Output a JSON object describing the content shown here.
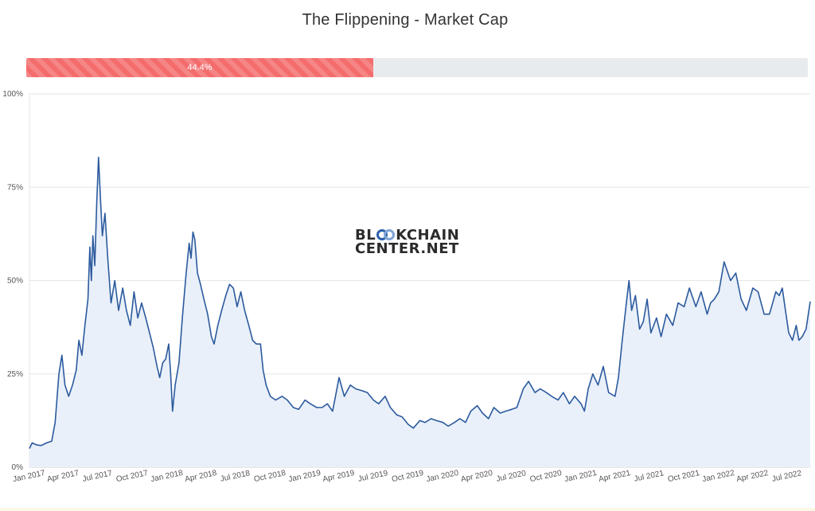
{
  "header": {
    "title": "The Flippening - Market Cap"
  },
  "progress": {
    "value_percent": 44.4,
    "label": "44.4%",
    "fill_color": "#f46c6c",
    "track_color": "#e8ebee"
  },
  "watermark": {
    "line1_pre": "BL",
    "line1_post": "KCHAIN",
    "line2": "CENTER.NET",
    "icon": "double-ring-o-icon"
  },
  "chart_data": {
    "type": "area",
    "title": "The Flippening - Market Cap",
    "xlabel": "",
    "ylabel": "",
    "ylim": [
      0,
      100
    ],
    "y_ticks": [
      "0%",
      "25%",
      "50%",
      "75%",
      "100%"
    ],
    "y_tick_values": [
      0,
      25,
      50,
      75,
      100
    ],
    "x_range": [
      "2017-01-01",
      "2022-08-31"
    ],
    "x_tick_labels": [
      "Jan 2017",
      "Apr 2017",
      "Jul 2017",
      "Oct 2017",
      "Jan 2018",
      "Apr 2018",
      "Jul 2018",
      "Oct 2018",
      "Jan 2019",
      "Apr 2019",
      "Jul 2019",
      "Oct 2019",
      "Jan 2020",
      "Apr 2020",
      "Jul 2020",
      "Oct 2020",
      "Jan 2021",
      "Apr 2021",
      "Jul 2021",
      "Oct 2021",
      "Jan 2022",
      "Apr 2022",
      "Jul 2022"
    ],
    "x_tick_dates": [
      "2017-01-01",
      "2017-04-01",
      "2017-07-01",
      "2017-10-01",
      "2018-01-01",
      "2018-04-01",
      "2018-07-01",
      "2018-10-01",
      "2019-01-01",
      "2019-04-01",
      "2019-07-01",
      "2019-10-01",
      "2020-01-01",
      "2020-04-01",
      "2020-07-01",
      "2020-10-01",
      "2021-01-01",
      "2021-04-01",
      "2021-07-01",
      "2021-10-01",
      "2022-01-01",
      "2022-04-01",
      "2022-07-01"
    ],
    "line_color": "#2c5a9e",
    "fill_color": "#e9f0f9",
    "grid": true,
    "legend": "none",
    "series": [
      {
        "x": [
          "2017-01-01",
          "2017-01-08",
          "2017-01-20",
          "2017-02-01",
          "2017-02-15",
          "2017-03-01",
          "2017-03-10",
          "2017-03-20",
          "2017-03-28",
          "2017-04-05",
          "2017-04-15",
          "2017-04-25",
          "2017-05-05",
          "2017-05-12",
          "2017-05-20",
          "2017-05-28",
          "2017-06-05",
          "2017-06-10",
          "2017-06-14",
          "2017-06-18",
          "2017-06-23",
          "2017-06-28",
          "2017-07-03",
          "2017-07-08",
          "2017-07-13",
          "2017-07-20",
          "2017-07-28",
          "2017-08-05",
          "2017-08-15",
          "2017-08-25",
          "2017-09-05",
          "2017-09-15",
          "2017-09-25",
          "2017-10-05",
          "2017-10-15",
          "2017-10-25",
          "2017-11-05",
          "2017-11-15",
          "2017-11-25",
          "2017-12-05",
          "2017-12-12",
          "2017-12-20",
          "2017-12-28",
          "2018-01-05",
          "2018-01-10",
          "2018-01-15",
          "2018-01-22",
          "2018-02-01",
          "2018-02-10",
          "2018-02-20",
          "2018-02-28",
          "2018-03-05",
          "2018-03-10",
          "2018-03-15",
          "2018-03-22",
          "2018-03-30",
          "2018-04-08",
          "2018-04-18",
          "2018-04-28",
          "2018-05-05",
          "2018-05-15",
          "2018-05-25",
          "2018-06-05",
          "2018-06-15",
          "2018-06-25",
          "2018-07-05",
          "2018-07-15",
          "2018-07-25",
          "2018-08-05",
          "2018-08-15",
          "2018-08-25",
          "2018-09-05",
          "2018-09-12",
          "2018-09-20",
          "2018-10-01",
          "2018-10-15",
          "2018-11-01",
          "2018-11-15",
          "2018-12-01",
          "2018-12-15",
          "2019-01-01",
          "2019-01-15",
          "2019-02-01",
          "2019-02-15",
          "2019-03-01",
          "2019-03-15",
          "2019-04-01",
          "2019-04-15",
          "2019-05-01",
          "2019-05-15",
          "2019-06-01",
          "2019-06-15",
          "2019-07-01",
          "2019-07-15",
          "2019-08-01",
          "2019-08-15",
          "2019-09-01",
          "2019-09-15",
          "2019-10-01",
          "2019-10-15",
          "2019-11-01",
          "2019-11-15",
          "2019-12-01",
          "2019-12-15",
          "2020-01-01",
          "2020-01-15",
          "2020-02-01",
          "2020-02-15",
          "2020-03-01",
          "2020-03-15",
          "2020-04-01",
          "2020-04-15",
          "2020-05-01",
          "2020-05-15",
          "2020-06-01",
          "2020-06-15",
          "2020-07-01",
          "2020-07-15",
          "2020-08-01",
          "2020-08-15",
          "2020-09-01",
          "2020-09-15",
          "2020-10-01",
          "2020-10-15",
          "2020-11-01",
          "2020-11-15",
          "2020-12-01",
          "2020-12-15",
          "2021-01-01",
          "2021-01-10",
          "2021-01-20",
          "2021-02-01",
          "2021-02-15",
          "2021-03-01",
          "2021-03-15",
          "2021-04-01",
          "2021-04-10",
          "2021-04-20",
          "2021-05-01",
          "2021-05-08",
          "2021-05-15",
          "2021-05-25",
          "2021-06-05",
          "2021-06-15",
          "2021-06-25",
          "2021-07-05",
          "2021-07-20",
          "2021-08-01",
          "2021-08-15",
          "2021-09-01",
          "2021-09-15",
          "2021-10-01",
          "2021-10-15",
          "2021-11-01",
          "2021-11-15",
          "2021-12-01",
          "2021-12-10",
          "2021-12-20",
          "2022-01-01",
          "2022-01-15",
          "2022-02-01",
          "2022-02-15",
          "2022-03-01",
          "2022-03-15",
          "2022-04-01",
          "2022-04-15",
          "2022-05-01",
          "2022-05-15",
          "2022-06-01",
          "2022-06-10",
          "2022-06-18",
          "2022-06-25",
          "2022-07-05",
          "2022-07-15",
          "2022-07-25",
          "2022-08-01",
          "2022-08-10",
          "2022-08-20",
          "2022-08-31"
        ],
        "y": [
          5,
          6.5,
          6,
          5.8,
          6.5,
          7,
          12,
          25,
          30,
          22,
          19,
          22,
          26,
          34,
          30,
          38,
          45,
          59,
          50,
          62,
          54,
          70,
          83,
          72,
          62,
          68,
          55,
          44,
          50,
          42,
          48,
          42,
          38,
          47,
          40,
          44,
          40,
          36,
          32,
          27,
          24,
          28,
          29,
          33,
          25,
          15,
          22,
          28,
          40,
          52,
          60,
          56,
          63,
          61,
          52,
          49,
          45,
          41,
          35,
          33,
          38,
          42,
          46,
          49,
          48,
          43,
          47,
          42,
          38,
          34,
          33,
          33,
          26,
          22,
          19,
          18,
          19,
          18,
          16,
          15.5,
          18,
          17,
          16,
          16,
          17,
          15,
          24,
          19,
          22,
          21,
          20.5,
          20,
          18,
          17,
          19,
          16,
          14,
          13.5,
          11.5,
          10.5,
          12.5,
          12,
          13,
          12.5,
          12,
          11,
          12,
          13,
          12,
          15,
          16.5,
          14.5,
          13,
          16,
          14.5,
          15,
          15.5,
          16,
          21,
          23,
          20,
          21,
          20,
          19,
          18,
          20,
          17,
          19,
          17,
          15,
          21,
          25,
          22,
          27,
          20,
          19,
          24,
          34,
          44,
          50,
          42,
          46,
          37,
          39,
          45,
          36,
          40,
          35,
          41,
          38,
          44,
          43,
          48,
          43,
          47,
          41,
          44,
          45,
          47,
          55,
          50,
          52,
          45,
          42,
          48,
          47,
          41,
          41,
          47,
          46,
          48,
          43,
          36,
          34,
          38,
          34,
          35,
          37,
          44.4
        ]
      }
    ]
  }
}
